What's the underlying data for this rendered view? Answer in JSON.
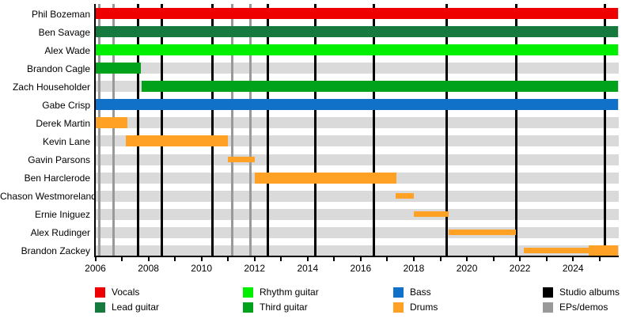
{
  "chart_data": {
    "type": "bar",
    "subtype": "band-membership-gantt-timeline",
    "title": "",
    "xlabel": "",
    "ylabel": "",
    "x_min": 2006.0,
    "x_max": 2025.7,
    "x_tick_step": 1,
    "x_labels": [
      "2006",
      "2008",
      "2010",
      "2012",
      "2014",
      "2016",
      "2018",
      "2020",
      "2022",
      "2024"
    ],
    "x_label_years": [
      2006,
      2008,
      2010,
      2012,
      2014,
      2016,
      2018,
      2020,
      2022,
      2024
    ],
    "grid": "off",
    "legend_position": "bottom",
    "rows": [
      {
        "name": "Phil Bozeman",
        "role": "Vocals",
        "segments": [
          {
            "start": 2006.0,
            "end": 2025.7,
            "color": "vocals",
            "style": "full"
          }
        ]
      },
      {
        "name": "Ben Savage",
        "role": "Lead guitar",
        "segments": [
          {
            "start": 2006.0,
            "end": 2025.7,
            "color": "lead_guitar",
            "style": "full"
          }
        ]
      },
      {
        "name": "Alex Wade",
        "role": "Rhythm guitar",
        "segments": [
          {
            "start": 2006.0,
            "end": 2025.7,
            "color": "rhythm_guitar",
            "style": "full"
          }
        ]
      },
      {
        "name": "Brandon Cagle",
        "role": "Third guitar",
        "segments": [
          {
            "start": 2006.0,
            "end": 2007.7,
            "color": "third_guitar",
            "style": "full"
          }
        ]
      },
      {
        "name": "Zach Householder",
        "role": "Third guitar",
        "segments": [
          {
            "start": 2007.75,
            "end": 2025.7,
            "color": "third_guitar",
            "style": "full"
          }
        ]
      },
      {
        "name": "Gabe Crisp",
        "role": "Bass",
        "segments": [
          {
            "start": 2006.0,
            "end": 2025.7,
            "color": "bass",
            "style": "full"
          }
        ]
      },
      {
        "name": "Derek Martin",
        "role": "Drums",
        "segments": [
          {
            "start": 2006.0,
            "end": 2007.2,
            "color": "drums",
            "style": "full"
          }
        ]
      },
      {
        "name": "Kevin Lane",
        "role": "Drums",
        "segments": [
          {
            "start": 2007.15,
            "end": 2011.0,
            "color": "drums",
            "style": "full"
          }
        ]
      },
      {
        "name": "Gavin Parsons",
        "role": "Drums",
        "segments": [
          {
            "start": 2011.0,
            "end": 2012.0,
            "color": "drums",
            "style": "thin"
          }
        ]
      },
      {
        "name": "Ben Harclerode",
        "role": "Drums",
        "segments": [
          {
            "start": 2012.0,
            "end": 2017.35,
            "color": "drums",
            "style": "full"
          }
        ]
      },
      {
        "name": "Chason Westmoreland",
        "role": "Drums",
        "segments": [
          {
            "start": 2017.3,
            "end": 2018.0,
            "color": "drums",
            "style": "thin"
          }
        ]
      },
      {
        "name": "Ernie Iniguez",
        "role": "Drums",
        "segments": [
          {
            "start": 2018.0,
            "end": 2019.3,
            "color": "drums",
            "style": "thin"
          }
        ]
      },
      {
        "name": "Alex Rudinger",
        "role": "Drums",
        "segments": [
          {
            "start": 2019.3,
            "end": 2021.85,
            "color": "drums",
            "style": "thin"
          }
        ]
      },
      {
        "name": "Brandon Zackey",
        "role": "Drums",
        "segments": [
          {
            "start": 2022.15,
            "end": 2024.6,
            "color": "drums",
            "style": "thin"
          },
          {
            "start": 2024.6,
            "end": 2025.7,
            "color": "drums",
            "style": "full"
          }
        ]
      }
    ],
    "event_lines": {
      "studio_albums": [
        2007.6,
        2008.5,
        2010.4,
        2012.5,
        2014.3,
        2016.5,
        2019.25,
        2021.85,
        2025.2
      ],
      "eps_demos": [
        2006.15,
        2006.7,
        2011.15,
        2011.85
      ]
    },
    "colors": {
      "vocals": "#ee0000",
      "lead_guitar": "#167a3f",
      "rhythm_guitar": "#00ee00",
      "third_guitar": "#00a21c",
      "bass": "#1170c8",
      "drums": "#ffa125",
      "studio_albums": "#000000",
      "eps_demos": "#999999",
      "row_track": "#dadada",
      "axis": "#000000"
    },
    "legend": [
      {
        "label": "Vocals",
        "color": "vocals"
      },
      {
        "label": "Lead guitar",
        "color": "lead_guitar"
      },
      {
        "label": "Rhythm guitar",
        "color": "rhythm_guitar"
      },
      {
        "label": "Third guitar",
        "color": "third_guitar"
      },
      {
        "label": "Bass",
        "color": "bass"
      },
      {
        "label": "Drums",
        "color": "drums"
      },
      {
        "label": "Studio albums",
        "color": "studio_albums"
      },
      {
        "label": "EPs/demos",
        "color": "eps_demos"
      }
    ]
  }
}
